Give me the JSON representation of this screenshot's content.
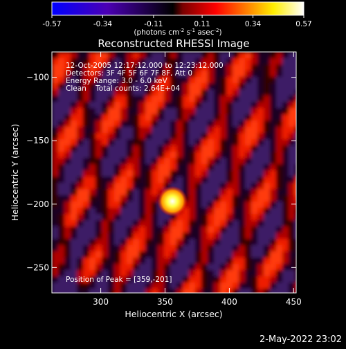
{
  "chart_data": {
    "type": "heatmap",
    "title": "Reconstructed RHESSI Image",
    "xlabel": "Heliocentric X (arcsec)",
    "ylabel": "Heliocentric Y (arcsec)",
    "xlim": [
      262,
      452
    ],
    "ylim": [
      -270,
      -80
    ],
    "x_ticks": [
      "300",
      "350",
      "400",
      "450"
    ],
    "x_tick_values": [
      300,
      350,
      400,
      450
    ],
    "y_ticks": [
      "-100",
      "-150",
      "-200",
      "-250"
    ],
    "y_tick_values": [
      -100,
      -150,
      -200,
      -250
    ],
    "colorbar": {
      "min": -0.57,
      "max": 0.57,
      "tick_labels": [
        "-0.57",
        "-0.34",
        "-0.11",
        "0.11",
        "0.34",
        "0.57"
      ],
      "label_parts": [
        "(photons cm",
        "-2",
        " s",
        "-1",
        " asec",
        "-2",
        ")"
      ],
      "colors": [
        "#0000ff",
        "#4b00b4",
        "#000000",
        "#ff0000",
        "#ffff00",
        "#ffffff"
      ]
    },
    "annotations": [
      "12-Oct-2005 12:17:12.000 to 12:23:12.000",
      "Detectors: 3F 4F 5F 6F 7F 8F, Att 0",
      "Energy Range: 3.0 - 6.0 keV",
      "Clean    Total counts: 2.64E+04"
    ],
    "peak_label": "Position of Peak = [359,-201]",
    "peak": {
      "x": 359,
      "y": -201,
      "value": 0.57
    },
    "footer_date": "2-May-2022 23:02"
  }
}
